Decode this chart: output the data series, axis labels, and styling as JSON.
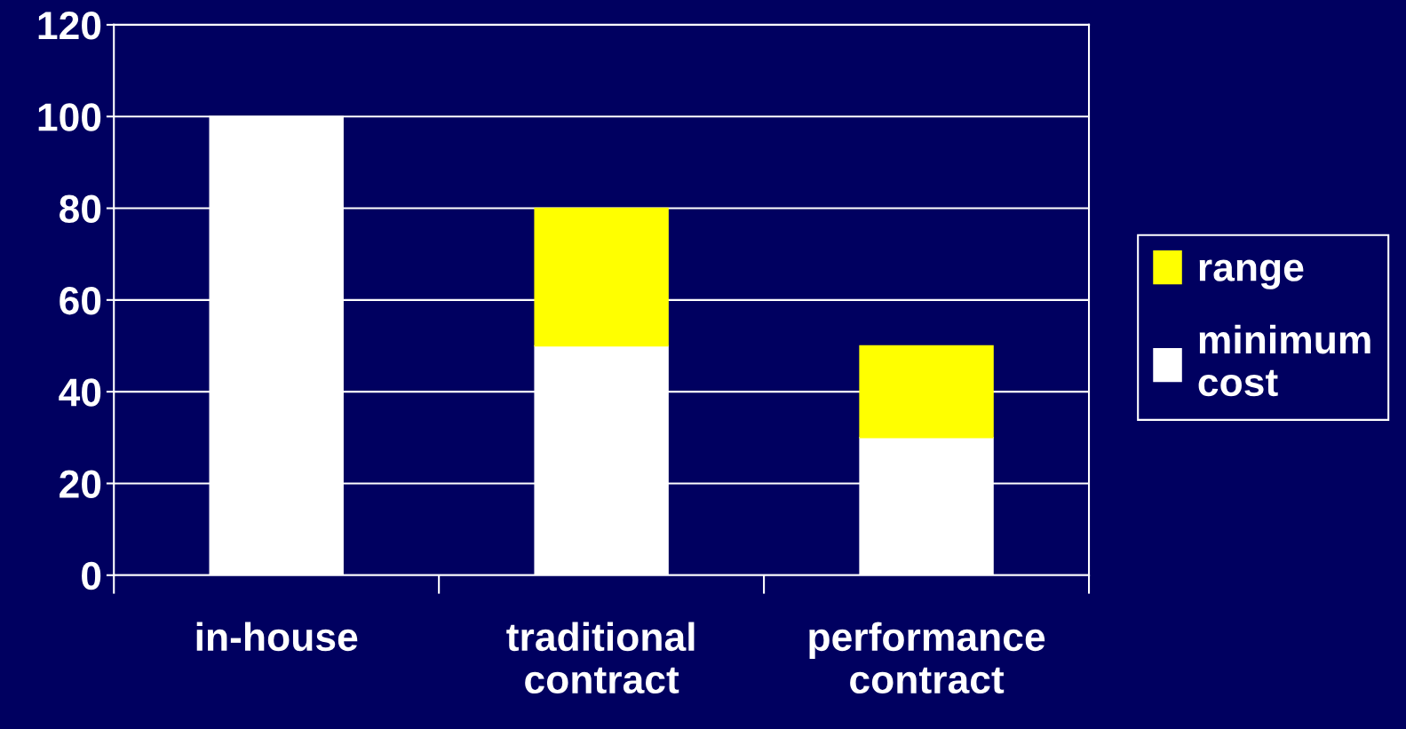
{
  "chart_data": {
    "type": "bar",
    "stacked": true,
    "categories": [
      "in-house",
      "traditional\ncontract",
      "performance\ncontract"
    ],
    "series": [
      {
        "name": "minimum\ncost",
        "color": "#ffffff",
        "values": [
          100,
          50,
          30
        ]
      },
      {
        "name": "range",
        "color": "#ffff00",
        "values": [
          null,
          30,
          20
        ]
      }
    ],
    "ylim": [
      0,
      120
    ],
    "yticks": [
      0,
      20,
      40,
      60,
      80,
      100,
      120
    ],
    "grid": "y",
    "legend": "right"
  }
}
